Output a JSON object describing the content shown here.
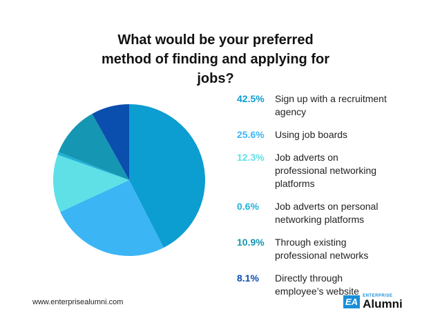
{
  "chart_data": {
    "type": "pie",
    "title": "What would be your preferred method of finding and applying for jobs?",
    "categories": [
      "Sign up with a recruitment agency",
      "Using job boards",
      "Job adverts on professional networking platforms",
      "Job adverts on personal networking platforms",
      "Through existing professional networks",
      "Directly through employee’s website"
    ],
    "values": [
      42.5,
      25.6,
      12.3,
      0.6,
      10.9,
      8.1
    ],
    "value_labels": [
      "42.5%",
      "25.6%",
      "12.3%",
      "0.6%",
      "10.9%",
      "8.1%"
    ],
    "colors": [
      "#0c9dd1",
      "#3bb5f4",
      "#5fe0e6",
      "#20b2d8",
      "#1597b3",
      "#0b4fae"
    ]
  },
  "footer": {
    "url": "www.enterprisealumni.com",
    "logo_badge": "EA",
    "logo_top": "ENTERPRISE",
    "logo_name": "Alumni"
  }
}
